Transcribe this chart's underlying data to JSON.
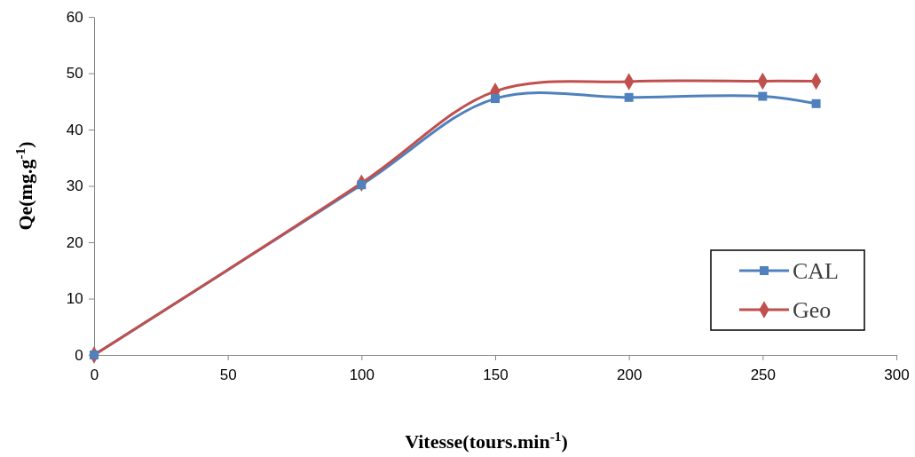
{
  "chart_data": {
    "type": "line",
    "xlabel": "Vitesse(tours.min$^{-1}$)",
    "ylabel": "Qe(mg.g$^{-1}$)",
    "xlim": [
      0,
      300
    ],
    "xticks": [
      0,
      50,
      100,
      150,
      200,
      250,
      300
    ],
    "ylim": [
      0,
      60
    ],
    "yticks": [
      0,
      10,
      20,
      30,
      40,
      50,
      60
    ],
    "x": [
      0,
      100,
      150,
      200,
      250,
      270
    ],
    "series": [
      {
        "name": "CAL",
        "color": "#4f81bd",
        "marker": "square",
        "values": [
          0,
          30.2,
          45.5,
          45.7,
          45.9,
          44.6
        ]
      },
      {
        "name": "Geo",
        "color": "#c0504d",
        "marker": "diamond",
        "values": [
          0,
          30.5,
          46.8,
          48.5,
          48.6,
          48.6
        ]
      }
    ],
    "grid": false,
    "legend": "bottom right",
    "line_style": "solid"
  }
}
